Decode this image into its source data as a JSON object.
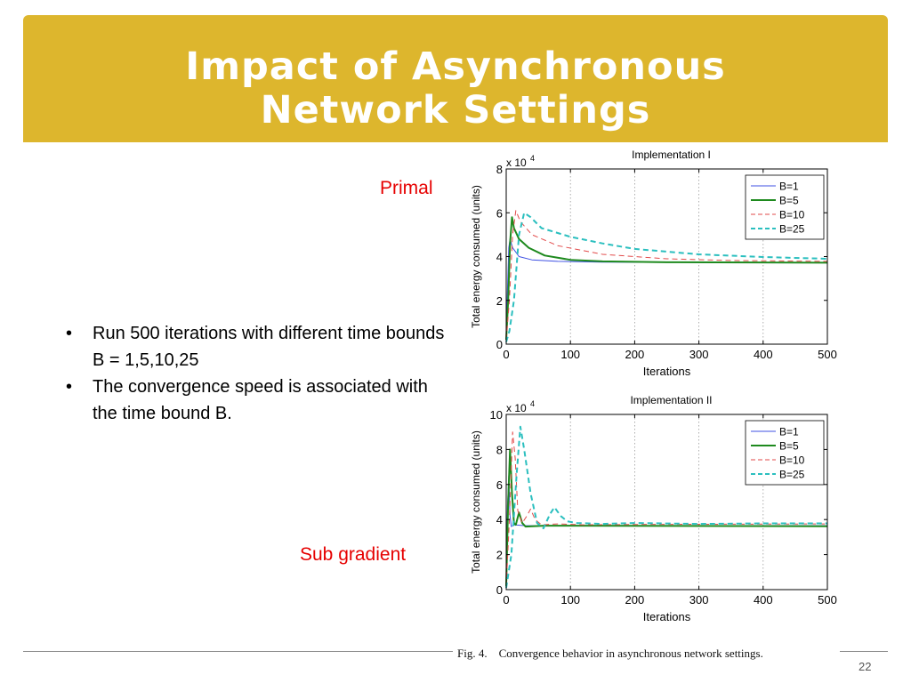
{
  "title": {
    "line1": "Impact of Asynchronous",
    "line2": "Network Settings"
  },
  "colors": {
    "title_bar": "#DDB62D",
    "label_red": "#E60000",
    "b1": "#3F51E3",
    "b5": "#1E8A1E",
    "b10": "#E24A4A",
    "b25": "#2BBFBF"
  },
  "labels": {
    "primal": "Primal",
    "subgradient": "Sub gradient"
  },
  "bullets": [
    "Run 500 iterations with different time bounds B = 1,5,10,25",
    "The convergence speed is associated with the time bound B."
  ],
  "caption": "Fig. 4.    Convergence behavior in asynchronous network settings.",
  "page_number": "22",
  "chart_data": [
    {
      "type": "line",
      "title": "Implementation I",
      "xlabel": "Iterations",
      "ylabel": "Total energy consumed (units)",
      "multiplier": "x 10",
      "exponent": "4",
      "xlim": [
        0,
        500
      ],
      "ylim": [
        0,
        8
      ],
      "xticks": [
        0,
        100,
        200,
        300,
        400,
        500
      ],
      "yticks": [
        0,
        2,
        4,
        6,
        8
      ],
      "grid_x": true,
      "legend_position": "top-right",
      "series": [
        {
          "name": "B=1",
          "color": "#3F51E3",
          "style": "solid",
          "width": 1,
          "points": [
            [
              0,
              0.3
            ],
            [
              2,
              2.5
            ],
            [
              4,
              4.4
            ],
            [
              6,
              4.8
            ],
            [
              10,
              4.4
            ],
            [
              20,
              4.0
            ],
            [
              40,
              3.85
            ],
            [
              80,
              3.78
            ],
            [
              150,
              3.75
            ],
            [
              300,
              3.73
            ],
            [
              500,
              3.72
            ]
          ]
        },
        {
          "name": "B=5",
          "color": "#1E8A1E",
          "style": "solid",
          "width": 2,
          "points": [
            [
              0,
              0.2
            ],
            [
              3,
              2.0
            ],
            [
              6,
              4.6
            ],
            [
              9,
              5.8
            ],
            [
              12,
              5.3
            ],
            [
              20,
              4.8
            ],
            [
              35,
              4.4
            ],
            [
              60,
              4.05
            ],
            [
              100,
              3.85
            ],
            [
              150,
              3.78
            ],
            [
              250,
              3.74
            ],
            [
              500,
              3.72
            ]
          ]
        },
        {
          "name": "B=10",
          "color": "#E24A4A",
          "style": "dashed",
          "width": 1,
          "points": [
            [
              0,
              0.2
            ],
            [
              5,
              2.0
            ],
            [
              10,
              5.0
            ],
            [
              15,
              6.1
            ],
            [
              22,
              5.6
            ],
            [
              40,
              5.0
            ],
            [
              80,
              4.5
            ],
            [
              150,
              4.1
            ],
            [
              250,
              3.9
            ],
            [
              350,
              3.82
            ],
            [
              500,
              3.78
            ]
          ]
        },
        {
          "name": "B=25",
          "color": "#2BBFBF",
          "style": "dashed",
          "width": 2,
          "points": [
            [
              0,
              0.1
            ],
            [
              5,
              0.6
            ],
            [
              12,
              2.0
            ],
            [
              20,
              5.0
            ],
            [
              28,
              6.0
            ],
            [
              38,
              5.8
            ],
            [
              55,
              5.3
            ],
            [
              100,
              4.9
            ],
            [
              150,
              4.6
            ],
            [
              200,
              4.35
            ],
            [
              300,
              4.1
            ],
            [
              400,
              3.98
            ],
            [
              500,
              3.9
            ]
          ]
        }
      ]
    },
    {
      "type": "line",
      "title": "Implementation II",
      "xlabel": "Iterations",
      "ylabel": "Total energy consumed (units)",
      "multiplier": "x 10",
      "exponent": "4",
      "xlim": [
        0,
        500
      ],
      "ylim": [
        0,
        10
      ],
      "xticks": [
        0,
        100,
        200,
        300,
        400,
        500
      ],
      "yticks": [
        0,
        2,
        4,
        6,
        8,
        10
      ],
      "grid_x": true,
      "legend_position": "top-right",
      "series": [
        {
          "name": "B=1",
          "color": "#3F51E3",
          "style": "solid",
          "width": 1,
          "points": [
            [
              0,
              0.2
            ],
            [
              2,
              4.8
            ],
            [
              4,
              6.5
            ],
            [
              6,
              4.2
            ],
            [
              8,
              3.6
            ],
            [
              12,
              3.7
            ],
            [
              30,
              3.65
            ],
            [
              100,
              3.65
            ],
            [
              500,
              3.65
            ]
          ]
        },
        {
          "name": "B=5",
          "color": "#1E8A1E",
          "style": "solid",
          "width": 2,
          "points": [
            [
              0,
              0.2
            ],
            [
              3,
              5.0
            ],
            [
              6,
              8.0
            ],
            [
              9,
              5.5
            ],
            [
              12,
              3.8
            ],
            [
              15,
              3.7
            ],
            [
              20,
              4.4
            ],
            [
              25,
              3.8
            ],
            [
              30,
              3.6
            ],
            [
              60,
              3.65
            ],
            [
              100,
              3.65
            ],
            [
              500,
              3.62
            ]
          ]
        },
        {
          "name": "B=10",
          "color": "#E24A4A",
          "style": "dashed",
          "width": 1,
          "points": [
            [
              0,
              0.2
            ],
            [
              5,
              4.0
            ],
            [
              10,
              9.0
            ],
            [
              14,
              7.5
            ],
            [
              18,
              4.5
            ],
            [
              25,
              3.8
            ],
            [
              32,
              4.2
            ],
            [
              38,
              4.6
            ],
            [
              45,
              4.0
            ],
            [
              55,
              3.7
            ],
            [
              80,
              3.75
            ],
            [
              120,
              3.7
            ],
            [
              200,
              3.72
            ],
            [
              500,
              3.75
            ]
          ]
        },
        {
          "name": "B=25",
          "color": "#2BBFBF",
          "style": "dashed",
          "width": 2,
          "points": [
            [
              0,
              0.1
            ],
            [
              8,
              2.0
            ],
            [
              16,
              6.5
            ],
            [
              22,
              9.3
            ],
            [
              28,
              8.0
            ],
            [
              38,
              5.5
            ],
            [
              48,
              3.8
            ],
            [
              58,
              3.5
            ],
            [
              68,
              4.3
            ],
            [
              75,
              4.7
            ],
            [
              85,
              4.2
            ],
            [
              95,
              3.9
            ],
            [
              110,
              3.8
            ],
            [
              150,
              3.75
            ],
            [
              200,
              3.8
            ],
            [
              300,
              3.75
            ],
            [
              400,
              3.78
            ],
            [
              500,
              3.78
            ]
          ]
        }
      ]
    }
  ]
}
